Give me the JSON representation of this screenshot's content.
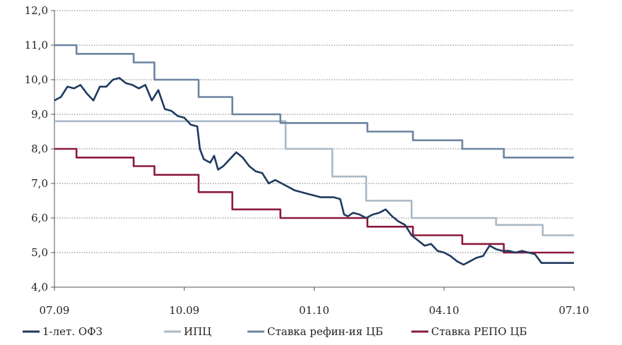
{
  "chart_data": {
    "type": "line",
    "title": "",
    "xlabel": "",
    "ylabel": "",
    "ylim": [
      4.0,
      12.0
    ],
    "y_ticks": [
      "4,0",
      "5,0",
      "6,0",
      "7,0",
      "8,0",
      "9,0",
      "10,0",
      "11,0",
      "12,0"
    ],
    "x_ticks": [
      "07.09",
      "10.09",
      "01.10",
      "04.10",
      "07.10"
    ],
    "grid": "horizontal",
    "legend_position": "bottom",
    "colors": {
      "ofz": "#1f3a5f",
      "cpi": "#a9b8c6",
      "refi": "#6d84a0",
      "repo": "#8b1a3c"
    },
    "series": [
      {
        "name": "1-лет. ОФЗ",
        "key": "ofz",
        "points": [
          [
            0,
            9.4
          ],
          [
            0.5,
            9.5
          ],
          [
            1,
            9.8
          ],
          [
            1.5,
            9.75
          ],
          [
            2,
            9.85
          ],
          [
            2.5,
            9.6
          ],
          [
            3,
            9.4
          ],
          [
            3.5,
            9.8
          ],
          [
            4,
            9.8
          ],
          [
            4.5,
            10.0
          ],
          [
            5,
            10.05
          ],
          [
            5.5,
            9.9
          ],
          [
            6,
            9.85
          ],
          [
            6.5,
            9.75
          ],
          [
            7,
            9.85
          ],
          [
            7.5,
            9.4
          ],
          [
            8,
            9.7
          ],
          [
            8.5,
            9.15
          ],
          [
            9,
            9.1
          ],
          [
            9.5,
            8.95
          ],
          [
            10,
            8.9
          ],
          [
            10.5,
            8.7
          ],
          [
            11,
            8.65
          ],
          [
            11.2,
            8.0
          ],
          [
            11.5,
            7.7
          ],
          [
            12,
            7.6
          ],
          [
            12.3,
            7.8
          ],
          [
            12.6,
            7.4
          ],
          [
            13,
            7.5
          ],
          [
            13.5,
            7.7
          ],
          [
            14,
            7.9
          ],
          [
            14.5,
            7.75
          ],
          [
            15,
            7.5
          ],
          [
            15.5,
            7.35
          ],
          [
            16,
            7.3
          ],
          [
            16.5,
            7.0
          ],
          [
            17,
            7.1
          ],
          [
            17.5,
            7.0
          ],
          [
            18,
            6.9
          ],
          [
            18.5,
            6.8
          ],
          [
            19,
            6.75
          ],
          [
            19.5,
            6.7
          ],
          [
            20,
            6.65
          ],
          [
            20.5,
            6.6
          ],
          [
            21,
            6.6
          ],
          [
            21.5,
            6.6
          ],
          [
            22,
            6.55
          ],
          [
            22.3,
            6.1
          ],
          [
            22.6,
            6.05
          ],
          [
            23,
            6.15
          ],
          [
            23.5,
            6.1
          ],
          [
            24,
            6.0
          ],
          [
            24.5,
            6.1
          ],
          [
            25,
            6.15
          ],
          [
            25.5,
            6.25
          ],
          [
            26,
            6.05
          ],
          [
            26.5,
            5.9
          ],
          [
            27,
            5.8
          ],
          [
            27.5,
            5.5
          ],
          [
            28,
            5.35
          ],
          [
            28.5,
            5.2
          ],
          [
            29,
            5.25
          ],
          [
            29.5,
            5.05
          ],
          [
            30,
            5.0
          ],
          [
            30.5,
            4.9
          ],
          [
            31,
            4.75
          ],
          [
            31.5,
            4.65
          ],
          [
            32,
            4.75
          ],
          [
            32.5,
            4.85
          ],
          [
            33,
            4.9
          ],
          [
            33.5,
            5.2
          ],
          [
            34,
            5.1
          ],
          [
            34.5,
            5.05
          ],
          [
            35,
            5.05
          ],
          [
            35.5,
            5.0
          ],
          [
            36,
            5.05
          ],
          [
            36.5,
            5.0
          ],
          [
            37,
            4.95
          ],
          [
            37.5,
            4.7
          ],
          [
            40,
            4.7
          ]
        ]
      },
      {
        "name": "ИПЦ",
        "key": "cpi",
        "points": [
          [
            0,
            8.8
          ],
          [
            17.8,
            8.8
          ],
          [
            17.8,
            8.0
          ],
          [
            21.4,
            8.0
          ],
          [
            21.4,
            7.2
          ],
          [
            24,
            7.2
          ],
          [
            24,
            6.5
          ],
          [
            27.5,
            6.5
          ],
          [
            27.5,
            6.0
          ],
          [
            34,
            6.0
          ],
          [
            34,
            5.8
          ],
          [
            37.6,
            5.8
          ],
          [
            37.6,
            5.5
          ],
          [
            40,
            5.5
          ]
        ]
      },
      {
        "name": "Ставка рефин-ия ЦБ",
        "key": "refi",
        "points": [
          [
            0,
            11.0
          ],
          [
            1.7,
            11.0
          ],
          [
            1.7,
            10.75
          ],
          [
            6.1,
            10.75
          ],
          [
            6.1,
            10.5
          ],
          [
            7.7,
            10.5
          ],
          [
            7.7,
            10.0
          ],
          [
            11.1,
            10.0
          ],
          [
            11.1,
            9.5
          ],
          [
            13.7,
            9.5
          ],
          [
            13.7,
            9.0
          ],
          [
            17.4,
            9.0
          ],
          [
            17.4,
            8.75
          ],
          [
            24.1,
            8.75
          ],
          [
            24.1,
            8.5
          ],
          [
            27.6,
            8.5
          ],
          [
            27.6,
            8.25
          ],
          [
            31.4,
            8.25
          ],
          [
            31.4,
            8.0
          ],
          [
            34.6,
            8.0
          ],
          [
            34.6,
            7.75
          ],
          [
            40,
            7.75
          ]
        ]
      },
      {
        "name": "Ставка РЕПО ЦБ",
        "key": "repo",
        "points": [
          [
            0,
            8.0
          ],
          [
            1.7,
            8.0
          ],
          [
            1.7,
            7.75
          ],
          [
            6.1,
            7.75
          ],
          [
            6.1,
            7.5
          ],
          [
            7.7,
            7.5
          ],
          [
            7.7,
            7.25
          ],
          [
            11.1,
            7.25
          ],
          [
            11.1,
            6.75
          ],
          [
            13.7,
            6.75
          ],
          [
            13.7,
            6.25
          ],
          [
            17.4,
            6.25
          ],
          [
            17.4,
            6.0
          ],
          [
            24.1,
            6.0
          ],
          [
            24.1,
            5.75
          ],
          [
            27.6,
            5.75
          ],
          [
            27.6,
            5.5
          ],
          [
            31.4,
            5.5
          ],
          [
            31.4,
            5.25
          ],
          [
            34.6,
            5.25
          ],
          [
            34.6,
            5.0
          ],
          [
            40,
            5.0
          ]
        ]
      }
    ]
  }
}
